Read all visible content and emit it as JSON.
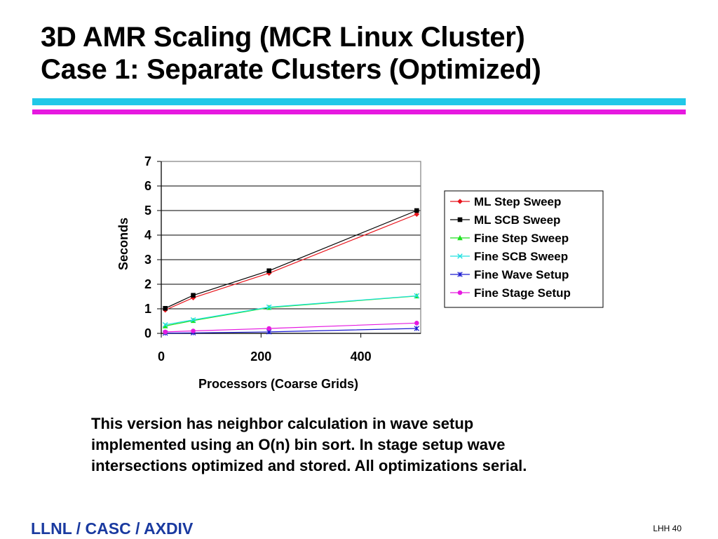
{
  "slide": {
    "title_line1": "3D AMR Scaling (MCR Linux Cluster)",
    "title_line2": "Case 1: Separate Clusters (Optimized)",
    "caption_lines": [
      "This version has neighbor calculation in wave setup",
      "implemented using an O(n) bin sort.  In stage setup wave",
      "intersections optimized and stored.  All optimizations serial."
    ],
    "footer_left": "LLNL / CASC / AXDIV",
    "footer_right": "LHH 40"
  },
  "colors": {
    "rule_cyan": "#21c8e8",
    "rule_magenta": "#e619e0",
    "footer_text": "#1a3aa0"
  },
  "chart_data": {
    "type": "line",
    "xlabel": "Processors (Coarse Grids)",
    "ylabel": "Seconds",
    "xlim": [
      0,
      520
    ],
    "ylim": [
      0,
      7
    ],
    "xticks": [
      0,
      200,
      400
    ],
    "yticks": [
      0,
      1,
      2,
      3,
      4,
      5,
      6,
      7
    ],
    "grid": "horizontal",
    "legend_position": "right",
    "series": [
      {
        "name": "ML Step Sweep",
        "color": "#e8141c",
        "marker": "diamond",
        "x": [
          8,
          64,
          216,
          512
        ],
        "y": [
          0.95,
          1.45,
          2.45,
          4.85
        ]
      },
      {
        "name": "ML SCB Sweep",
        "color": "#000000",
        "marker": "square",
        "x": [
          8,
          64,
          216,
          512
        ],
        "y": [
          1.02,
          1.55,
          2.55,
          5.0
        ]
      },
      {
        "name": "Fine Step Sweep",
        "color": "#1ee01e",
        "marker": "triangle",
        "x": [
          8,
          64,
          216,
          512
        ],
        "y": [
          0.3,
          0.52,
          1.05,
          1.52
        ]
      },
      {
        "name": "Fine SCB Sweep",
        "color": "#20e0e0",
        "marker": "x",
        "x": [
          8,
          64,
          216,
          512
        ],
        "y": [
          0.35,
          0.55,
          1.07,
          1.53
        ]
      },
      {
        "name": "Fine Wave Setup",
        "color": "#1a1ad0",
        "marker": "star",
        "x": [
          8,
          64,
          216,
          512
        ],
        "y": [
          0.01,
          0.02,
          0.06,
          0.2
        ]
      },
      {
        "name": "Fine Stage Setup",
        "color": "#e619e0",
        "marker": "circle",
        "x": [
          8,
          64,
          216,
          512
        ],
        "y": [
          0.06,
          0.1,
          0.2,
          0.42
        ]
      }
    ]
  }
}
